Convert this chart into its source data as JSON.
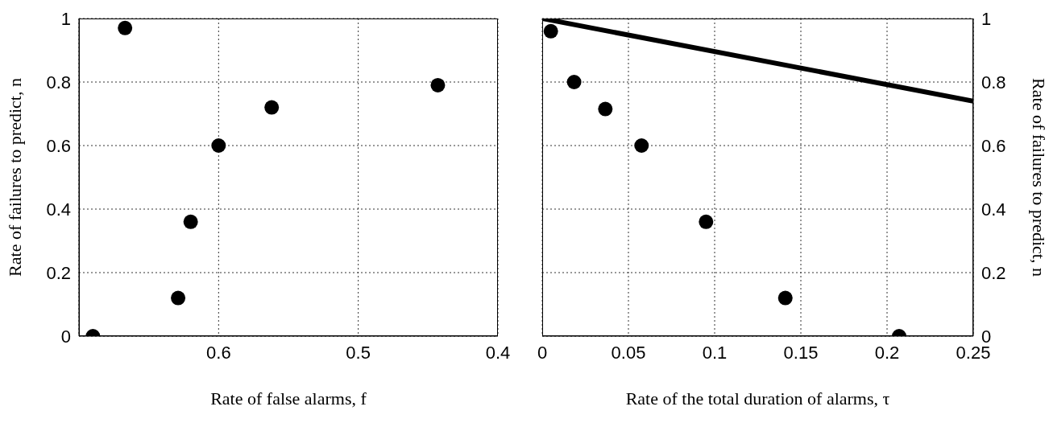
{
  "chart_data": [
    {
      "type": "scatter",
      "xlabel": "Rate of false alarms, f",
      "ylabel": "Rate of  failures to predict, n",
      "xlim": [
        0.7,
        0.4
      ],
      "xticks": [
        0.6,
        0.5,
        0.4
      ],
      "ylim": [
        0,
        1
      ],
      "yticks": [
        0,
        0.2,
        0.4,
        0.6,
        0.8,
        1
      ],
      "grid": true,
      "series": [
        {
          "color": "#000000",
          "marker": "circle",
          "x": [
            0.69,
            0.667,
            0.629,
            0.62,
            0.6,
            0.562,
            0.443
          ],
          "values": [
            0,
            0.97,
            0.12,
            0.36,
            0.6,
            0.72,
            0.79
          ]
        }
      ]
    },
    {
      "type": "scatter",
      "xlabel": "Rate of the total duration of alarms,  τ",
      "y2label": "Rate of  failures to predict, n",
      "xlim": [
        0,
        0.25
      ],
      "xticks": [
        0,
        0.05,
        0.1,
        0.15,
        0.2,
        0.25
      ],
      "y2lim": [
        0,
        1
      ],
      "y2ticks": [
        0,
        0.2,
        0.4,
        0.6,
        0.8,
        1
      ],
      "grid": true,
      "series": [
        {
          "axis": "y2",
          "color": "#000000",
          "marker": "circle",
          "x": [
            0.005,
            0.0185,
            0.0366,
            0.0576,
            0.095,
            0.141,
            0.207
          ],
          "values": [
            0.96,
            0.8,
            0.715,
            0.6,
            0.36,
            0.12,
            0
          ]
        },
        {
          "type": "line",
          "axis": "y2",
          "color": "#000000",
          "marker": "none",
          "x": [
            0,
            0.25
          ],
          "values": [
            1,
            0.74
          ]
        }
      ]
    }
  ]
}
